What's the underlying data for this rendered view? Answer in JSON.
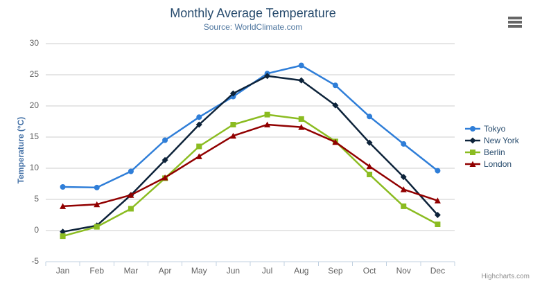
{
  "chart_data": {
    "type": "line",
    "title": "Monthly Average Temperature",
    "subtitle": "Source: WorldClimate.com",
    "categories": [
      "Jan",
      "Feb",
      "Mar",
      "Apr",
      "May",
      "Jun",
      "Jul",
      "Aug",
      "Sep",
      "Oct",
      "Nov",
      "Dec"
    ],
    "series": [
      {
        "name": "Tokyo",
        "color": "#2f7ed8",
        "marker": "circle",
        "values": [
          7.0,
          6.9,
          9.5,
          14.5,
          18.2,
          21.5,
          25.2,
          26.5,
          23.3,
          18.3,
          13.9,
          9.6
        ]
      },
      {
        "name": "New York",
        "color": "#0d233a",
        "marker": "diamond",
        "values": [
          -0.2,
          0.8,
          5.7,
          11.3,
          17.0,
          22.0,
          24.8,
          24.1,
          20.1,
          14.1,
          8.6,
          2.5
        ]
      },
      {
        "name": "Berlin",
        "color": "#8bbc21",
        "marker": "square",
        "values": [
          -0.9,
          0.6,
          3.5,
          8.4,
          13.5,
          17.0,
          18.6,
          17.9,
          14.3,
          9.0,
          3.9,
          1.0
        ]
      },
      {
        "name": "London",
        "color": "#910000",
        "marker": "triangle",
        "values": [
          3.9,
          4.2,
          5.7,
          8.5,
          11.9,
          15.2,
          17.0,
          16.6,
          14.2,
          10.3,
          6.6,
          4.8
        ]
      }
    ],
    "xlabel": "",
    "ylabel": "Temperature (°C)",
    "ylim": [
      -5,
      30
    ],
    "ytick_step": 5,
    "grid": true,
    "legend_position": "right"
  },
  "credits": {
    "label": "Highcharts.com"
  },
  "toolbar": {
    "context_menu_icon": "hamburger-icon"
  },
  "colors": {
    "title": "#274b6d",
    "subtitle": "#4d759e",
    "axis_title": "#4572a7",
    "axis_labels": "#606060",
    "grid_line": "#cdcdcd",
    "axis_line": "#c0d0e0",
    "legend_text": "#274b6d",
    "credits": "#909090",
    "menu_icon": "#666666"
  }
}
